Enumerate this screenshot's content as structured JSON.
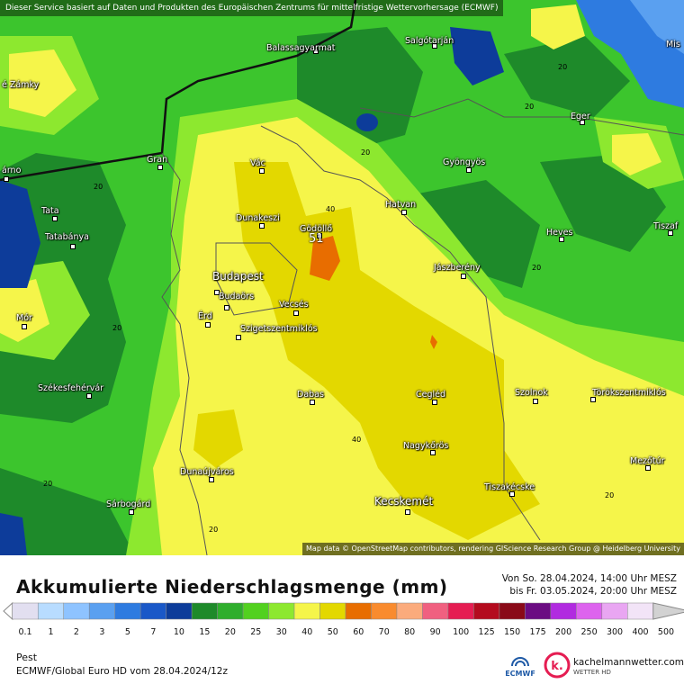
{
  "banner": "Dieser Service basiert auf Daten und Produkten des Europäischen Zentrums für mittelfristige Wettervorhersage (ECMWF)",
  "attribution": "Map data © OpenStreetMap contributors, rendering GIScience Research Group @ Heidelberg University",
  "cities": [
    "Balassagyarmat",
    "Salgótarján",
    "é Zámky",
    "Eger",
    "Gran",
    "Vác",
    "Gyöngyös",
    "árno",
    "Tata",
    "Dunakeszi",
    "Gödöllő",
    "Hatvan",
    "Heves",
    "Tiszaf",
    "Tatabánya",
    "Budapest",
    "Jászberény",
    "Budaörs",
    "Mór",
    "Érd",
    "Vecsés",
    "Szigetszentmiklós",
    "Székesfehérvár",
    "Cegléd",
    "Szolnok",
    "Törökszentmiklós",
    "Dabas",
    "Nagykőrös",
    "Dunaújváros",
    "Mezőtúr",
    "Tiszakécske",
    "Sárbogárd",
    "Kecskemét",
    "Mis"
  ],
  "contour_labels": [
    "20",
    "20",
    "20",
    "20",
    "20",
    "20",
    "20",
    "20",
    "20",
    "40",
    "40"
  ],
  "max_value": "51",
  "title": "Akkumulierte Niederschlagsmenge (mm)",
  "period_from": "Von So. 28.04.2024, 14:00 Uhr MESZ",
  "period_to": "bis Fr. 03.05.2024, 20:00 Uhr MESZ",
  "scale": {
    "labels": [
      "0.1",
      "1",
      "2",
      "3",
      "5",
      "7",
      "10",
      "15",
      "20",
      "25",
      "30",
      "40",
      "50",
      "60",
      "70",
      "80",
      "90",
      "100",
      "125",
      "150",
      "175",
      "200",
      "250",
      "300",
      "400",
      "500"
    ],
    "colors": [
      "#e2dff0",
      "#b8dcff",
      "#8ec3ff",
      "#5aa0f0",
      "#2e7be0",
      "#1a58c8",
      "#0d3c9a",
      "#1e8a2a",
      "#2fae2d",
      "#52d11f",
      "#8de82f",
      "#f5f54a",
      "#e3d800",
      "#e86d00",
      "#f98b2e",
      "#fbab7c",
      "#f06080",
      "#e51d52",
      "#b40b1e",
      "#8a0a18",
      "#6b0c82",
      "#b12be0",
      "#dd63ee",
      "#e9a6f2",
      "#f2e4f7",
      "#d2d2d2"
    ]
  },
  "location": "Pest",
  "model": "ECMWF/Global Euro HD vom  28.04.2024/12z",
  "logos": {
    "ecmwf": "ECMWF",
    "kachel_name": "kachelmannwetter.com",
    "kachel_sub": "WETTER HD",
    "kachel_letter": "k."
  }
}
